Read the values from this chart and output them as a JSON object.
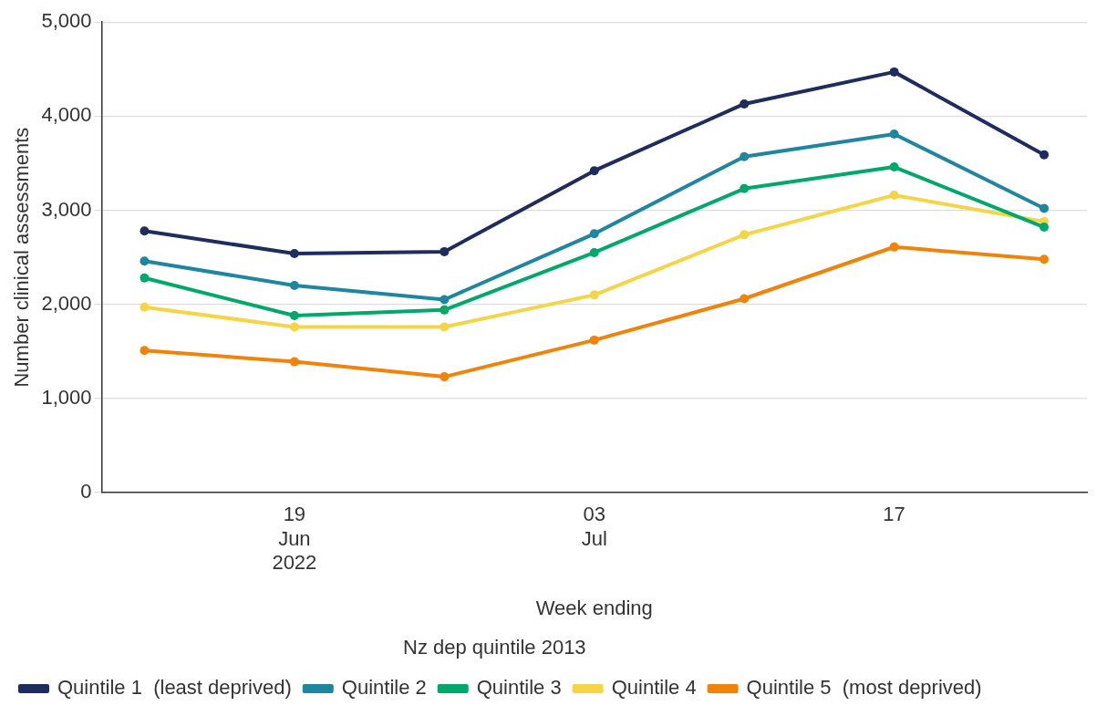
{
  "chart_data": {
    "type": "line",
    "xlabel": "Week ending",
    "ylabel": "Number clinical assessments",
    "legend_title": "Nz dep quintile 2013",
    "x": [
      "2022-06-12",
      "2022-06-19",
      "2022-06-26",
      "2022-07-03",
      "2022-07-10",
      "2022-07-17",
      "2022-07-24"
    ],
    "xlim": [
      "2022-06-10",
      "2022-07-26"
    ],
    "xticks": [
      {
        "value": "2022-06-19",
        "label": "19\nJun\n2022"
      },
      {
        "value": "2022-07-03",
        "label": "03\nJul"
      },
      {
        "value": "2022-07-17",
        "label": "17"
      }
    ],
    "ylim": [
      0,
      5000
    ],
    "yticks": [
      {
        "value": 0,
        "label": "0"
      },
      {
        "value": 1000,
        "label": "1,000"
      },
      {
        "value": 2000,
        "label": "2,000"
      },
      {
        "value": 3000,
        "label": "3,000"
      },
      {
        "value": 4000,
        "label": "4,000"
      },
      {
        "value": 5000,
        "label": "5,000"
      }
    ],
    "grid": "y",
    "legend": "bottom",
    "marker": "circle",
    "line_style": "solid",
    "series": [
      {
        "name": "Quintile 1  (least deprived)",
        "color": "#1f2d5c",
        "values": [
          2780,
          2540,
          2560,
          3420,
          4130,
          4470,
          3590
        ]
      },
      {
        "name": "Quintile 2",
        "color": "#1f86a0",
        "values": [
          2460,
          2200,
          2050,
          2750,
          3570,
          3810,
          3020
        ]
      },
      {
        "name": "Quintile 3",
        "color": "#00a86b",
        "values": [
          2280,
          1880,
          1940,
          2550,
          3230,
          3460,
          2820
        ]
      },
      {
        "name": "Quintile 4",
        "color": "#f5d547",
        "values": [
          1970,
          1760,
          1760,
          2100,
          2740,
          3160,
          2880
        ]
      },
      {
        "name": "Quintile 5  (most deprived)",
        "color": "#f0830a",
        "values": [
          1510,
          1390,
          1230,
          1620,
          2060,
          2610,
          2480
        ]
      }
    ]
  }
}
